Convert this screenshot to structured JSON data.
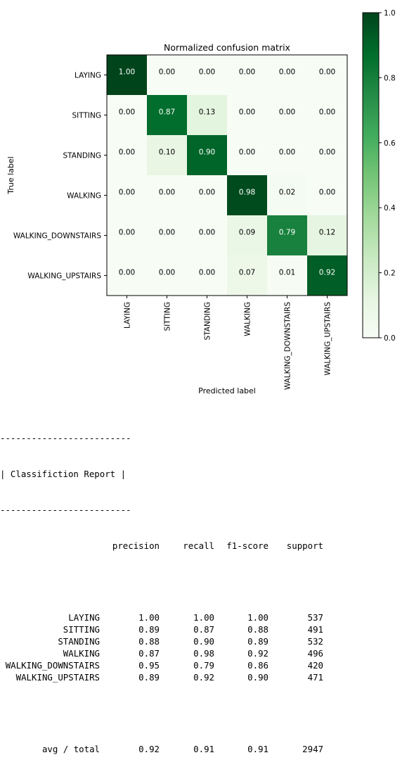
{
  "chart_data": {
    "type": "heatmap",
    "title": "Normalized confusion matrix",
    "xlabel": "Predicted label",
    "ylabel": "True label",
    "classes": [
      "LAYING",
      "SITTING",
      "STANDING",
      "WALKING",
      "WALKING_DOWNSTAIRS",
      "WALKING_UPSTAIRS"
    ],
    "matrix": [
      [
        1.0,
        0.0,
        0.0,
        0.0,
        0.0,
        0.0
      ],
      [
        0.0,
        0.87,
        0.13,
        0.0,
        0.0,
        0.0
      ],
      [
        0.0,
        0.1,
        0.9,
        0.0,
        0.0,
        0.0
      ],
      [
        0.0,
        0.0,
        0.0,
        0.98,
        0.02,
        0.0
      ],
      [
        0.0,
        0.0,
        0.0,
        0.09,
        0.79,
        0.12
      ],
      [
        0.0,
        0.0,
        0.0,
        0.07,
        0.01,
        0.92
      ]
    ],
    "colormap": "Greens",
    "colorbar": {
      "range": [
        0.0,
        1.0
      ],
      "ticks": [
        "0.0",
        "0.2",
        "0.4",
        "0.6",
        "0.8",
        "1.0"
      ]
    },
    "grid": false
  },
  "report": {
    "divider": "-------------------------",
    "heading": "| Classifiction Report |",
    "columns": [
      "precision",
      "recall",
      "f1-score",
      "support"
    ],
    "rows": [
      {
        "label": "LAYING",
        "precision": "1.00",
        "recall": "1.00",
        "f1": "1.00",
        "support": "537"
      },
      {
        "label": "SITTING",
        "precision": "0.89",
        "recall": "0.87",
        "f1": "0.88",
        "support": "491"
      },
      {
        "label": "STANDING",
        "precision": "0.88",
        "recall": "0.90",
        "f1": "0.89",
        "support": "532"
      },
      {
        "label": "WALKING",
        "precision": "0.87",
        "recall": "0.98",
        "f1": "0.92",
        "support": "496"
      },
      {
        "label": "WALKING_DOWNSTAIRS",
        "precision": "0.95",
        "recall": "0.79",
        "f1": "0.86",
        "support": "420"
      },
      {
        "label": "WALKING_UPSTAIRS",
        "precision": "0.89",
        "recall": "0.92",
        "f1": "0.90",
        "support": "471"
      }
    ],
    "total": {
      "label": "avg / total",
      "precision": "0.92",
      "recall": "0.91",
      "f1": "0.91",
      "support": "2947"
    }
  }
}
